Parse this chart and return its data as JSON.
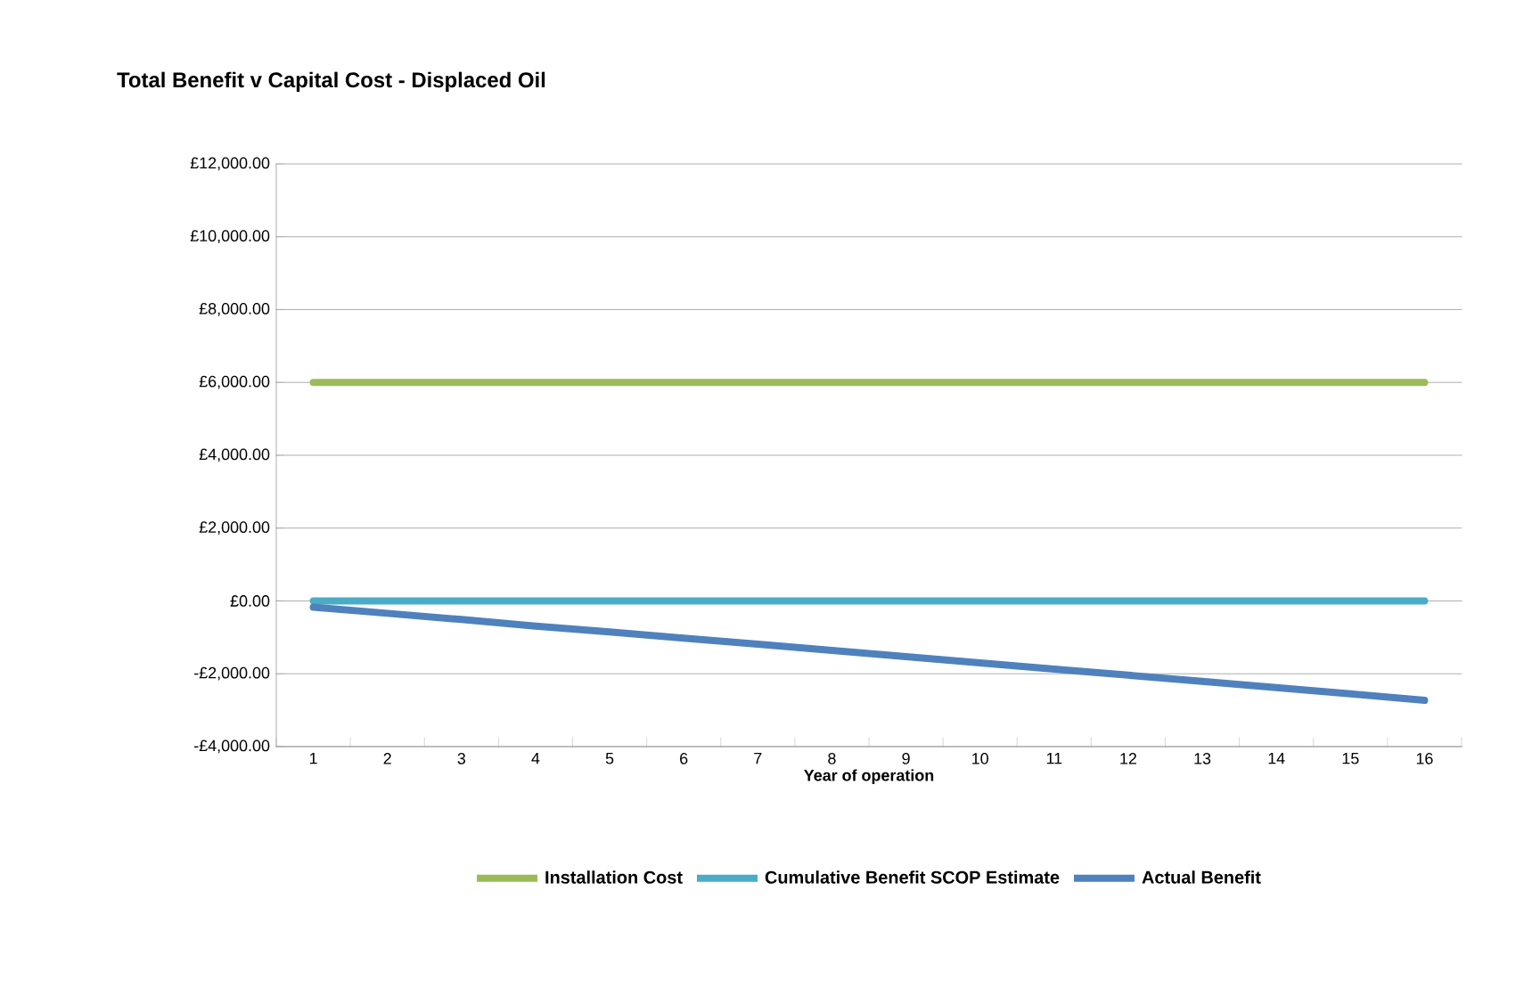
{
  "chart_data": {
    "type": "line",
    "title": "Total Benefit v Capital Cost - Displaced Oil",
    "xlabel": "Year of operation",
    "categories": [
      "1",
      "2",
      "3",
      "4",
      "5",
      "6",
      "7",
      "8",
      "9",
      "10",
      "11",
      "12",
      "13",
      "14",
      "15",
      "16"
    ],
    "series": [
      {
        "name": "Installation Cost",
        "color": "#9bbb59",
        "values": [
          6000,
          6000,
          6000,
          6000,
          6000,
          6000,
          6000,
          6000,
          6000,
          6000,
          6000,
          6000,
          6000,
          6000,
          6000,
          6000
        ]
      },
      {
        "name": "Cumulative Benefit SCOP Estimate",
        "color": "#4bacc6",
        "values": [
          0,
          0,
          0,
          0,
          0,
          0,
          0,
          0,
          0,
          0,
          0,
          0,
          0,
          0,
          0,
          0
        ]
      },
      {
        "name": "Actual Benefit",
        "color": "#4f81bd",
        "values": [
          -170,
          -340,
          -510,
          -690,
          -850,
          -1020,
          -1190,
          -1360,
          -1530,
          -1700,
          -1870,
          -2040,
          -2210,
          -2380,
          -2550,
          -2730
        ]
      }
    ],
    "ylim": [
      -4000,
      12000
    ],
    "yticks": [
      {
        "value": -4000,
        "label": "-£4,000.00"
      },
      {
        "value": -2000,
        "label": "-£2,000.00"
      },
      {
        "value": 0,
        "label": "£0.00"
      },
      {
        "value": 2000,
        "label": "£2,000.00"
      },
      {
        "value": 4000,
        "label": "£4,000.00"
      },
      {
        "value": 6000,
        "label": "£6,000.00"
      },
      {
        "value": 8000,
        "label": "£8,000.00"
      },
      {
        "value": 10000,
        "label": "£10,000.00"
      },
      {
        "value": 12000,
        "label": "£12,000.00"
      }
    ],
    "grid": "y",
    "legend": "bottom",
    "marker": "none",
    "line_style": "solid"
  }
}
